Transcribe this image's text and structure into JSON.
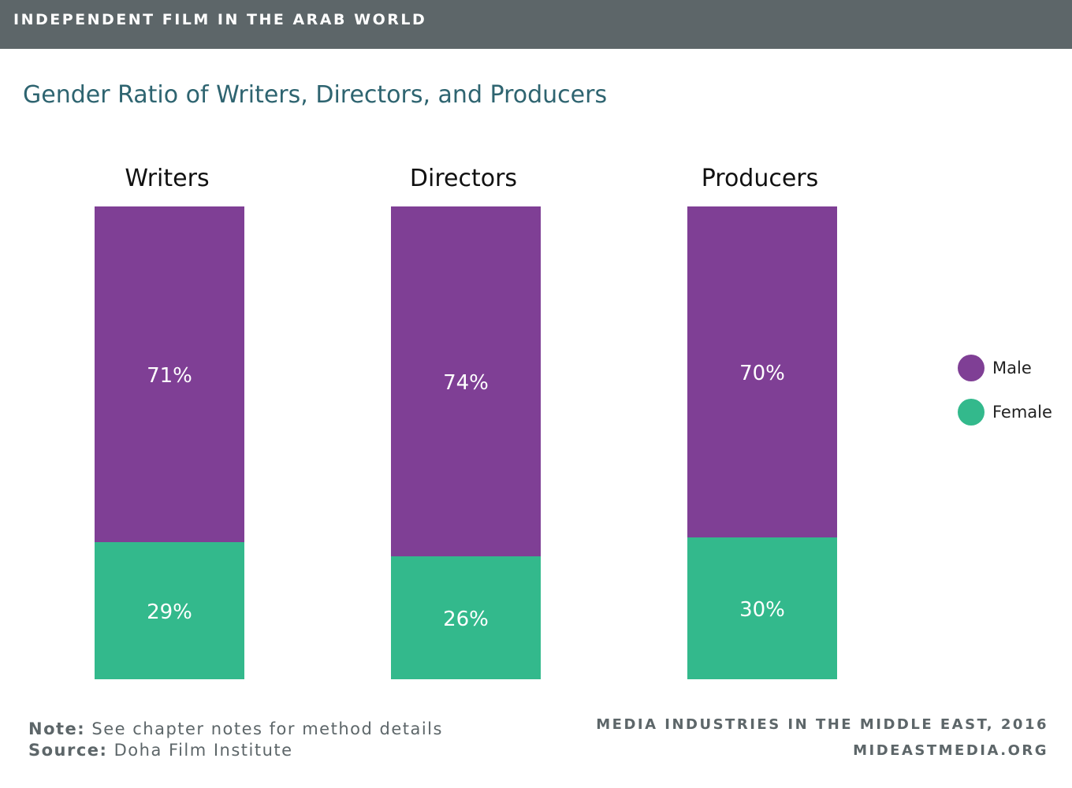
{
  "header": {
    "title": "INDEPENDENT FILM IN THE ARAB WORLD"
  },
  "colors": {
    "header_bg": "#5d6669",
    "title_text": "#2e6470",
    "male": "#7f3f95",
    "female": "#33b98c"
  },
  "chart_data": {
    "type": "bar",
    "stacked": true,
    "normalized_percent": true,
    "title": "Gender Ratio of Writers, Directors, and Producers",
    "categories": [
      "Writers",
      "Directors",
      "Producers"
    ],
    "series": [
      {
        "name": "Male",
        "values": [
          71,
          74,
          70
        ],
        "labels": [
          "71%",
          "74%",
          "70%"
        ],
        "color": "#7f3f95"
      },
      {
        "name": "Female",
        "values": [
          29,
          26,
          30
        ],
        "labels": [
          "29%",
          "26%",
          "30%"
        ],
        "color": "#33b98c"
      }
    ],
    "ylim": [
      0,
      100
    ],
    "grid": false,
    "legend_position": "right"
  },
  "legend": {
    "items": [
      {
        "label": "Male",
        "color": "#7f3f95"
      },
      {
        "label": "Female",
        "color": "#33b98c"
      }
    ]
  },
  "footnotes": {
    "note_key": "Note:",
    "note_text": "See chapter notes for method details",
    "source_key": "Source:",
    "source_text": "Doha Film Institute"
  },
  "publisher": {
    "line1": "MEDIA INDUSTRIES IN THE MIDDLE EAST, 2016",
    "line2": "MIDEASTMEDIA.ORG"
  }
}
